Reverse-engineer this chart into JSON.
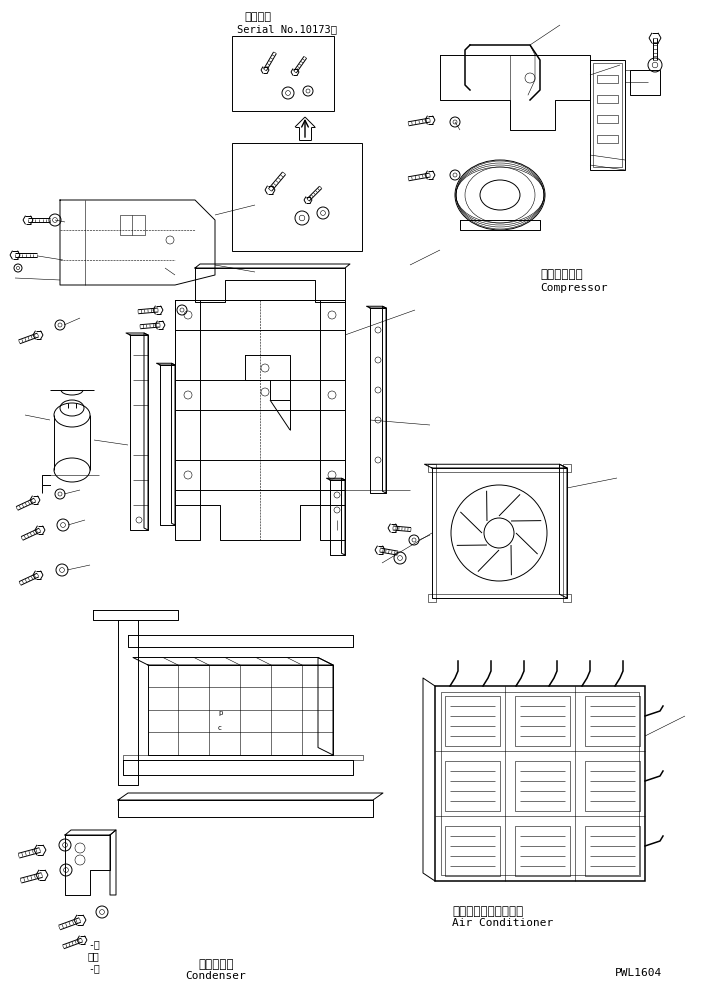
{
  "background_color": "#ffffff",
  "figure_width": 7.04,
  "figure_height": 9.82,
  "dpi": 100,
  "serial_label_jp": "適用号機",
  "serial_label_en": "Serial No.10173～",
  "compressor_label_jp": "コンプレッサ",
  "compressor_label_en": "Compressor",
  "condenser_label_jp": "コンデンサ",
  "condenser_label_en": "Condenser",
  "ac_label_jp": "エアーコンディショナ",
  "ac_label_en": "Air Conditioner",
  "part_number": "PWL1604",
  "line_color": "#000000",
  "lw": 0.7,
  "tlw": 0.4,
  "thickw": 1.1
}
